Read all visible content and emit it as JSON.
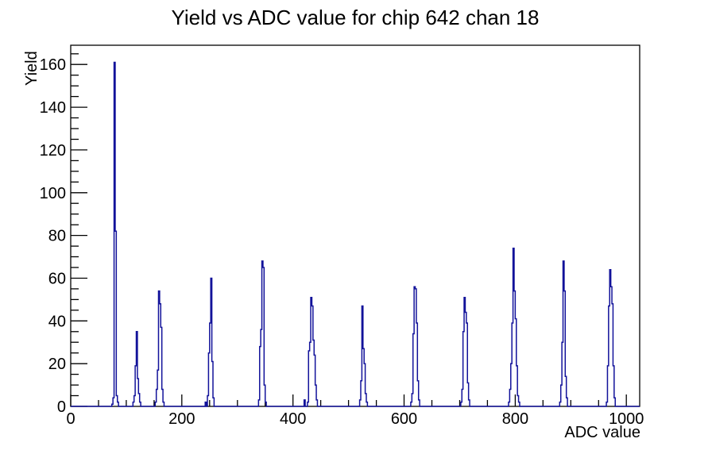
{
  "window": {
    "background_color": "#ffffff",
    "frame_color": "#000000",
    "text_color": "#000000"
  },
  "chart_data": {
    "type": "line",
    "style": "step-histogram",
    "title": "Yield vs ADC value for chip 642 chan 18",
    "xlabel": "ADC value",
    "ylabel": "Yield",
    "xlim": [
      0,
      1024
    ],
    "ylim": [
      0,
      169
    ],
    "x_major_ticks": [
      0,
      200,
      400,
      600,
      800,
      1000
    ],
    "x_minor_step": 50,
    "y_major_step": 20,
    "y_minor_step": 5,
    "grid": false,
    "legend": false,
    "line_color": "#12129a",
    "bin_width": 2,
    "bins": [
      [
        74,
        1
      ],
      [
        76,
        4
      ],
      [
        78,
        161
      ],
      [
        80,
        82
      ],
      [
        82,
        5
      ],
      [
        84,
        2
      ],
      [
        112,
        2
      ],
      [
        114,
        5
      ],
      [
        116,
        19
      ],
      [
        118,
        35
      ],
      [
        120,
        13
      ],
      [
        122,
        6
      ],
      [
        124,
        2
      ],
      [
        152,
        2
      ],
      [
        154,
        8
      ],
      [
        156,
        17
      ],
      [
        158,
        54
      ],
      [
        160,
        48
      ],
      [
        162,
        37
      ],
      [
        164,
        8
      ],
      [
        166,
        2
      ],
      [
        242,
        2
      ],
      [
        246,
        5
      ],
      [
        248,
        25
      ],
      [
        250,
        39
      ],
      [
        252,
        60
      ],
      [
        254,
        21
      ],
      [
        256,
        4
      ],
      [
        338,
        3
      ],
      [
        340,
        28
      ],
      [
        342,
        36
      ],
      [
        344,
        68
      ],
      [
        346,
        65
      ],
      [
        348,
        10
      ],
      [
        350,
        2
      ],
      [
        420,
        3
      ],
      [
        426,
        2
      ],
      [
        428,
        26
      ],
      [
        430,
        30
      ],
      [
        432,
        51
      ],
      [
        434,
        47
      ],
      [
        436,
        31
      ],
      [
        438,
        24
      ],
      [
        440,
        10
      ],
      [
        442,
        3
      ],
      [
        520,
        3
      ],
      [
        522,
        12
      ],
      [
        524,
        47
      ],
      [
        526,
        27
      ],
      [
        528,
        20
      ],
      [
        530,
        6
      ],
      [
        532,
        2
      ],
      [
        612,
        2
      ],
      [
        614,
        6
      ],
      [
        616,
        34
      ],
      [
        618,
        56
      ],
      [
        620,
        55
      ],
      [
        622,
        39
      ],
      [
        624,
        12
      ],
      [
        626,
        3
      ],
      [
        702,
        2
      ],
      [
        704,
        8
      ],
      [
        706,
        35
      ],
      [
        708,
        51
      ],
      [
        710,
        44
      ],
      [
        712,
        39
      ],
      [
        714,
        11
      ],
      [
        716,
        3
      ],
      [
        788,
        2
      ],
      [
        790,
        8
      ],
      [
        792,
        20
      ],
      [
        794,
        39
      ],
      [
        796,
        74
      ],
      [
        798,
        54
      ],
      [
        800,
        41
      ],
      [
        802,
        19
      ],
      [
        804,
        5
      ],
      [
        806,
        2
      ],
      [
        880,
        2
      ],
      [
        882,
        10
      ],
      [
        884,
        30
      ],
      [
        886,
        68
      ],
      [
        888,
        54
      ],
      [
        890,
        14
      ],
      [
        892,
        4
      ],
      [
        964,
        2
      ],
      [
        966,
        19
      ],
      [
        968,
        47
      ],
      [
        970,
        64
      ],
      [
        972,
        56
      ],
      [
        974,
        48
      ],
      [
        976,
        19
      ],
      [
        978,
        4
      ]
    ],
    "peaks": [
      {
        "adc": 79,
        "yield": 161
      },
      {
        "adc": 119,
        "yield": 35
      },
      {
        "adc": 159,
        "yield": 54
      },
      {
        "adc": 253,
        "yield": 60
      },
      {
        "adc": 345,
        "yield": 68
      },
      {
        "adc": 433,
        "yield": 51
      },
      {
        "adc": 525,
        "yield": 47
      },
      {
        "adc": 619,
        "yield": 56
      },
      {
        "adc": 709,
        "yield": 51
      },
      {
        "adc": 797,
        "yield": 74
      },
      {
        "adc": 887,
        "yield": 68
      },
      {
        "adc": 971,
        "yield": 64
      }
    ]
  }
}
